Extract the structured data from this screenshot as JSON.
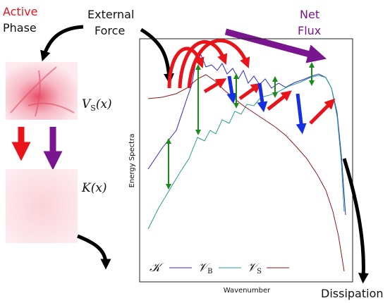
{
  "labels": {
    "active": "Active",
    "phase": "Phase",
    "external": "External",
    "force": "Force",
    "net": "Net",
    "flux": "Flux",
    "dissipation": "Dissipation",
    "y_axis": "Energy Spectra",
    "x_axis": "Wavenumber"
  },
  "fields": [
    {
      "symbol": "V",
      "subscript": "S",
      "argument": "(x)"
    },
    {
      "symbol": "K",
      "argument": "(x)"
    }
  ],
  "legend": [
    {
      "symbol": "𝒦"
    },
    {
      "symbol": "𝒱",
      "subscript": "B"
    },
    {
      "symbol": "𝒱",
      "subscript": "S"
    }
  ]
}
